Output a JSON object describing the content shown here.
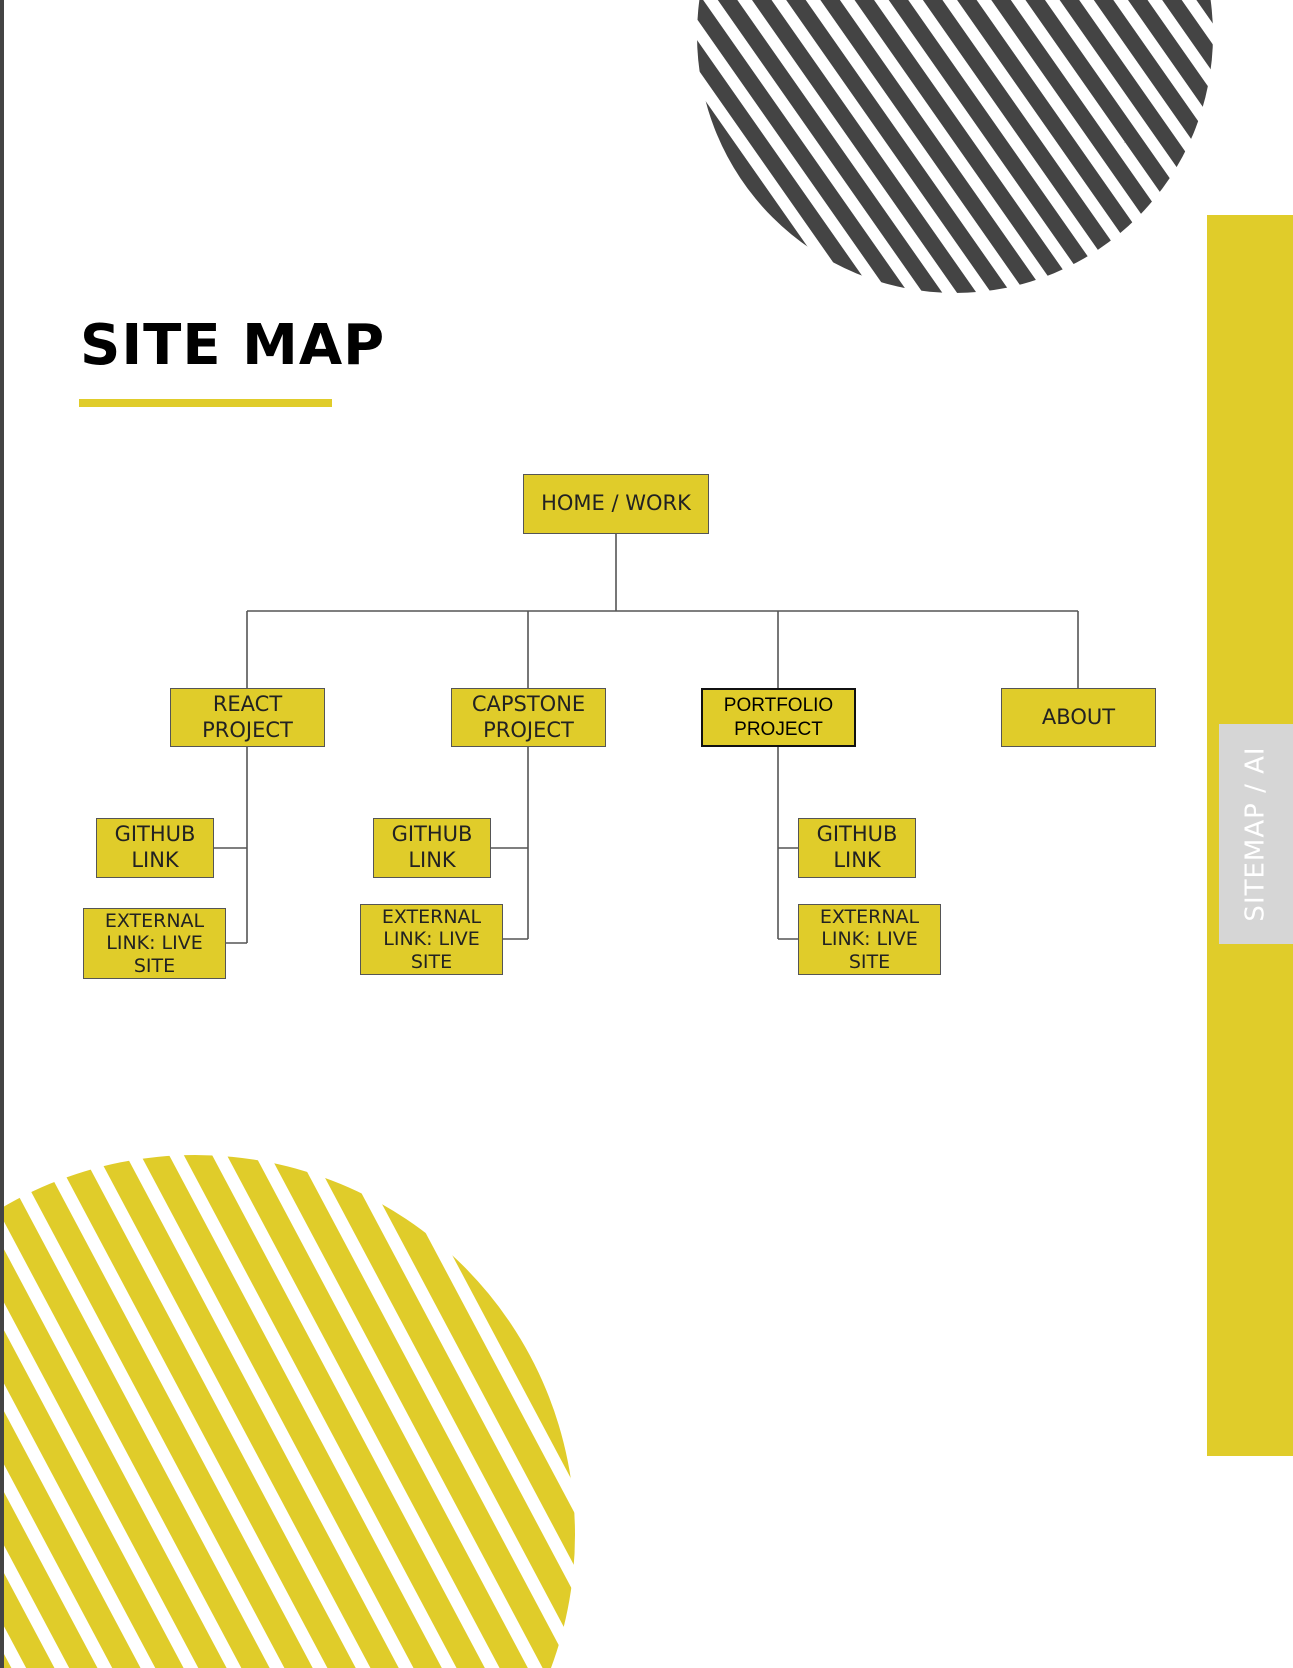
{
  "page": {
    "title": "SITE MAP",
    "side_tab_label": "SITEMAP / AI"
  },
  "colors": {
    "accent": "#e0cc2a",
    "dark": "#444444",
    "tab_gray": "#d6d6d6",
    "node_border": "#555555"
  },
  "sitemap": {
    "root": "HOME / WORK",
    "sections": [
      {
        "label": "REACT PROJECT",
        "children": [
          "GITHUB LINK",
          "EXTERNAL LINK: LIVE SITE"
        ]
      },
      {
        "label": "CAPSTONE PROJECT",
        "children": [
          "GITHUB LINK",
          "EXTERNAL LINK: LIVE SITE"
        ]
      },
      {
        "label": "PORTFOLIO PROJECT",
        "children": [
          "GITHUB LINK",
          "EXTERNAL LINK: LIVE SITE"
        ]
      },
      {
        "label": "ABOUT",
        "children": []
      }
    ]
  }
}
